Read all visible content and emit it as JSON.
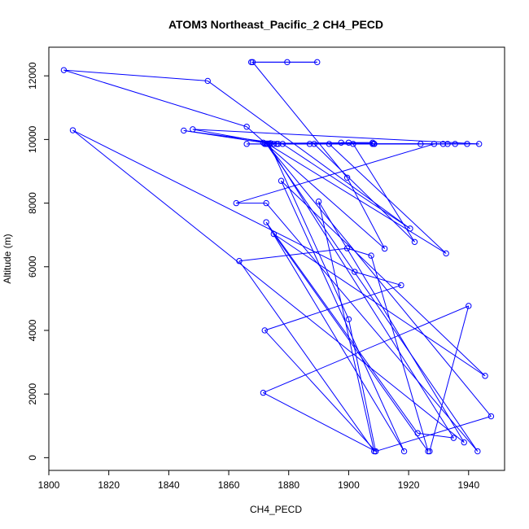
{
  "chart_data": {
    "type": "line",
    "title": "ATOM3 Northeast_Pacific_2 CH4_PECD",
    "xlabel": "CH4_PECD",
    "ylabel": "Altitude (m)",
    "xlim": [
      1800,
      1952
    ],
    "ylim": [
      -400,
      12900
    ],
    "xticks": [
      1800,
      1820,
      1840,
      1860,
      1880,
      1900,
      1920,
      1940
    ],
    "yticks": [
      0,
      2000,
      4000,
      6000,
      8000,
      10000,
      12000
    ],
    "grid": false,
    "series_color": "#0000ff",
    "marker": "open-circle",
    "x": [
      1867.5,
      1889.5,
      1879.5,
      1868,
      1899.5,
      1912,
      1866,
      1805,
      1853,
      1920.5,
      1878,
      1845,
      1871.5,
      1874,
      1908,
      1900,
      1897.5,
      1908.5,
      1872,
      1908.5,
      1943.5,
      1848,
      1875,
      1887,
      1901.5,
      1922,
      1888.5,
      1908.5,
      1931.5,
      1876,
      1876.5,
      1872.5,
      1933,
      1939.5,
      1908.5,
      1893.5,
      1932.5,
      1873,
      1908.5,
      1924,
      1866,
      1908,
      1935.5,
      1928.5,
      1862.5,
      1872.5,
      1943,
      1872.5,
      1947.5,
      1909,
      1872,
      1917.5,
      1902,
      1808,
      1938.5,
      1890,
      1908.5,
      1863.5,
      1899.5,
      1907.5,
      1926.5,
      1875,
      1945.5,
      1877.5,
      1918.5,
      1872.5,
      1923,
      1935,
      1873,
      1873.5,
      1900,
      1909,
      1871.5,
      1940,
      1927
    ],
    "y": [
      12430,
      12430,
      12430,
      12430,
      8800,
      6570,
      10400,
      12180,
      11840,
      7200,
      9860,
      10280,
      9900,
      9880,
      9900,
      9900,
      9900,
      9860,
      9860,
      9860,
      9860,
      10320,
      9860,
      9860,
      9860,
      6780,
      9860,
      9860,
      9860,
      9860,
      9860,
      9860,
      9860,
      9860,
      9860,
      9860,
      6420,
      9860,
      9860,
      9860,
      9860,
      9860,
      9860,
      9860,
      8000,
      8000,
      200,
      9870,
      1300,
      200,
      4000,
      5420,
      5840,
      10290,
      480,
      8050,
      200,
      6180,
      6580,
      6350,
      200,
      7030,
      2570,
      8700,
      200,
      7400,
      770,
      620,
      9870,
      9870,
      4350,
      200,
      2040,
      4770,
      200
    ]
  }
}
